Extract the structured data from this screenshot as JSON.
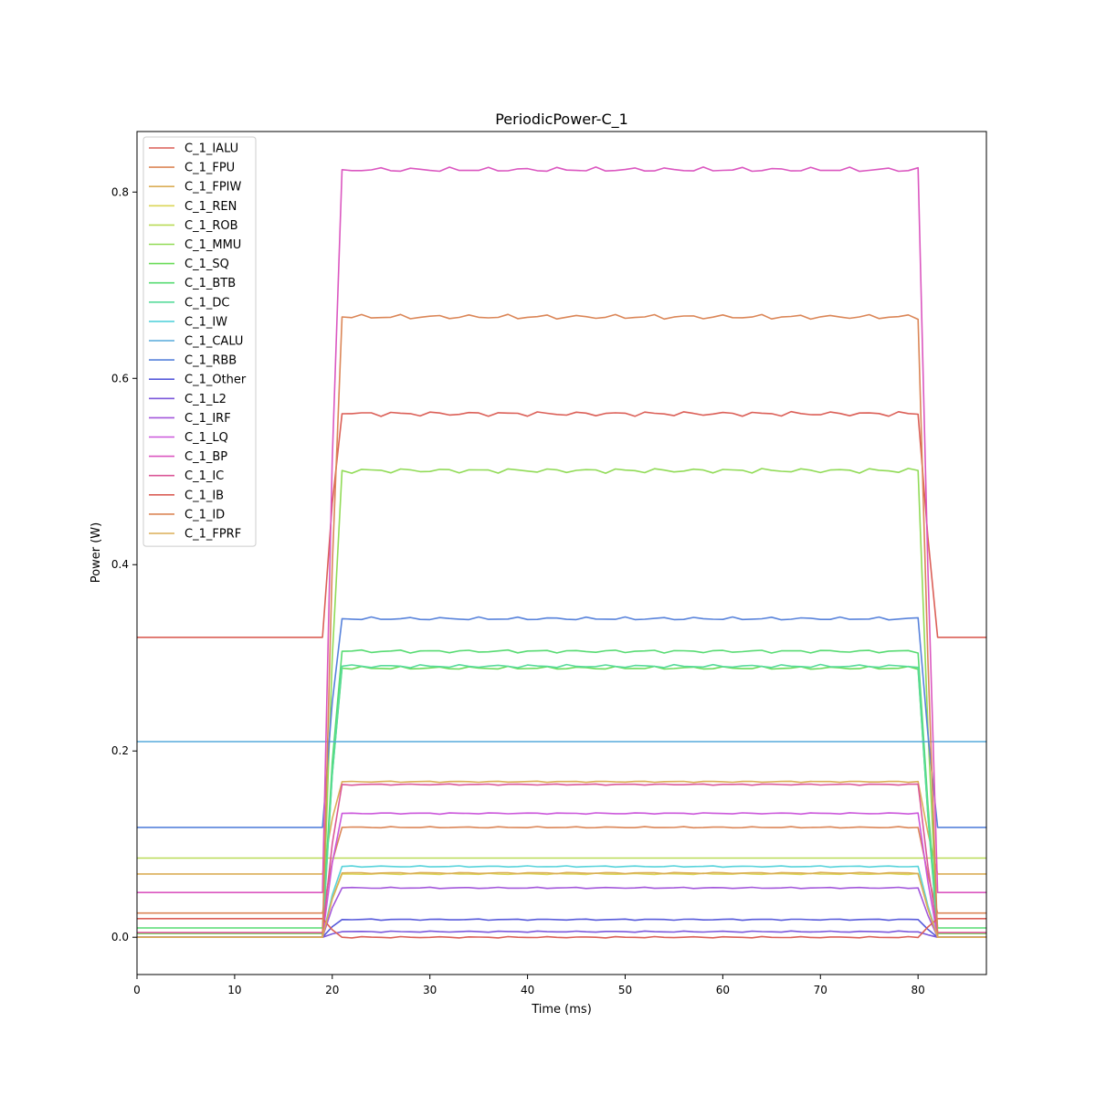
{
  "chart_data": {
    "type": "line",
    "title": "PeriodicPower-C_1",
    "xlabel": "Time (ms)",
    "ylabel": "Power (W)",
    "xlim": [
      0,
      87
    ],
    "ylim": [
      -0.04,
      0.865
    ],
    "xticks": [
      0,
      10,
      20,
      30,
      40,
      50,
      60,
      70,
      80
    ],
    "yticks": [
      0.0,
      0.2,
      0.4,
      0.6,
      0.8
    ],
    "xtick_labels": [
      "0",
      "10",
      "20",
      "30",
      "40",
      "50",
      "60",
      "70",
      "80"
    ],
    "ytick_labels": [
      "0.0",
      "0.2",
      "0.4",
      "0.6",
      "0.8"
    ],
    "grid": false,
    "legend_position": "upper-left",
    "phases": {
      "idle_end": 19,
      "ramp_end": 21,
      "active_end": 80,
      "fall_end": 82,
      "x_end": 87
    },
    "series": [
      {
        "name": "C_1_IALU",
        "color": "#db5f57",
        "idle": 0.322,
        "active": 0.562
      },
      {
        "name": "C_1_FPU",
        "color": "#db8657",
        "idle": 0.026,
        "active": 0.118
      },
      {
        "name": "C_1_FPIW",
        "color": "#dbae57",
        "idle": 0.068,
        "active": 0.167
      },
      {
        "name": "C_1_REN",
        "color": "#dbd657",
        "idle": 0.0,
        "active": 0.068
      },
      {
        "name": "C_1_ROB",
        "color": "#b9db57",
        "idle": 0.085,
        "active": 0.085
      },
      {
        "name": "C_1_MMU",
        "color": "#91db57",
        "idle": 0.0,
        "active": 0.501
      },
      {
        "name": "C_1_SQ",
        "color": "#69db57",
        "idle": 0.004,
        "active": 0.289
      },
      {
        "name": "C_1_BTB",
        "color": "#57db72",
        "idle": 0.01,
        "active": 0.307
      },
      {
        "name": "C_1_DC",
        "color": "#57db9a",
        "idle": 0.0,
        "active": 0.291
      },
      {
        "name": "C_1_IW",
        "color": "#57d3db",
        "idle": 0.0,
        "active": 0.076
      },
      {
        "name": "C_1_CALU",
        "color": "#57aadb",
        "idle": 0.21,
        "active": 0.21
      },
      {
        "name": "C_1_RBB",
        "color": "#5782db",
        "idle": 0.118,
        "active": 0.342
      },
      {
        "name": "C_1_Other",
        "color": "#575adb",
        "idle": 0.0,
        "active": 0.019
      },
      {
        "name": "C_1_L2",
        "color": "#7b57db",
        "idle": 0.0,
        "active": 0.006
      },
      {
        "name": "C_1_IRF",
        "color": "#a357db",
        "idle": 0.0,
        "active": 0.053
      },
      {
        "name": "C_1_LQ",
        "color": "#cb57db",
        "idle": 0.0,
        "active": 0.133
      },
      {
        "name": "C_1_BP",
        "color": "#db57c0",
        "idle": 0.048,
        "active": 0.824
      },
      {
        "name": "C_1_IC",
        "color": "#db5798",
        "idle": 0.005,
        "active": 0.164
      },
      {
        "name": "C_1_IB",
        "color": "#db5f57",
        "idle": 0.02,
        "active": 0.0
      },
      {
        "name": "C_1_ID",
        "color": "#db8657",
        "idle": 0.0,
        "active": 0.666
      },
      {
        "name": "C_1_FPRF",
        "color": "#dbae57",
        "idle": 0.0,
        "active": 0.069
      }
    ]
  }
}
